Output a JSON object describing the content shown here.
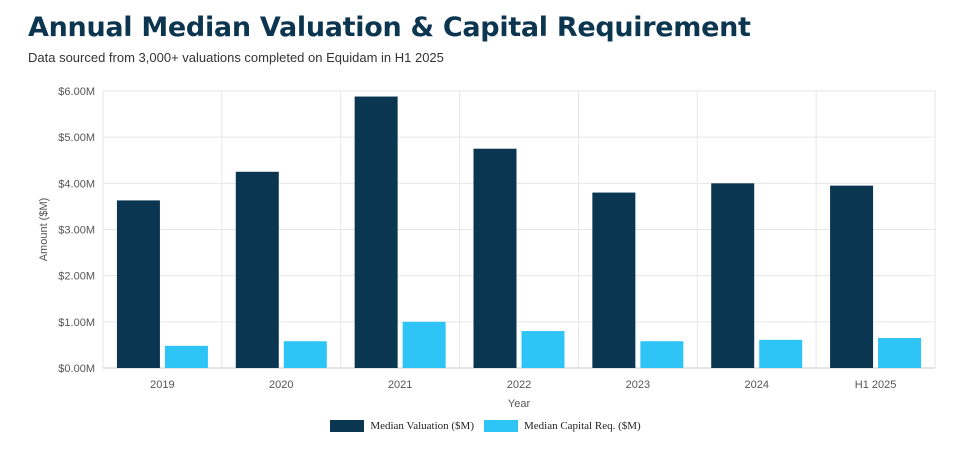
{
  "header": {
    "title": "Annual Median Valuation & Capital Requirement",
    "subtitle": "Data sourced from 3,000+ valuations completed on Equidam in H1 2025"
  },
  "chart_data": {
    "type": "bar",
    "categories": [
      "2019",
      "2020",
      "2021",
      "2022",
      "2023",
      "2024",
      "H1 2025"
    ],
    "series": [
      {
        "name": "Median Valuation ($M)",
        "color": "#0a3651",
        "values": [
          3.63,
          4.25,
          5.88,
          4.75,
          3.8,
          4.0,
          3.95
        ]
      },
      {
        "name": "Median Capital Req. ($M)",
        "color": "#2ec4f5",
        "values": [
          0.48,
          0.58,
          1.0,
          0.8,
          0.58,
          0.61,
          0.65
        ]
      }
    ],
    "xlabel": "Year",
    "ylabel": "Amount ($M)",
    "ylim": [
      0,
      6
    ],
    "yticks": [
      0,
      1,
      2,
      3,
      4,
      5,
      6
    ],
    "ytick_labels": [
      "$0.00M",
      "$1.00M",
      "$2.00M",
      "$3.00M",
      "$4.00M",
      "$5.00M",
      "$6.00M"
    ],
    "grid": true,
    "legend": "bottom-center"
  }
}
